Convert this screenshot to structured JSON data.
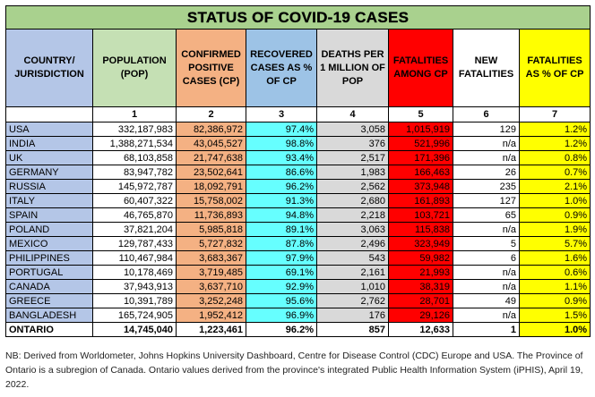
{
  "title": "STATUS OF COVID-19 CASES",
  "headers": [
    "COUNTRY/ JURISDICTION",
    "POPULATION (POP)",
    "CONFIRMED POSITIVE CASES (CP)",
    "RECOVERED CASES AS % OF CP",
    "DEATHS PER 1 MILLION OF POP",
    "FATALITIES AMONG CP",
    "NEW FATALITIES",
    "FATALITIES AS % OF CP"
  ],
  "column_numbers": [
    "",
    "1",
    "2",
    "3",
    "4",
    "5",
    "6",
    "7"
  ],
  "rows": [
    [
      "USA",
      "332,187,983",
      "82,386,972",
      "97.4%",
      "3,058",
      "1,015,919",
      "129",
      "1.2%"
    ],
    [
      "INDIA",
      "1,388,271,534",
      "43,045,527",
      "98.8%",
      "376",
      "521,996",
      "n/a",
      "1.2%"
    ],
    [
      "UK",
      "68,103,858",
      "21,747,638",
      "93.4%",
      "2,517",
      "171,396",
      "n/a",
      "0.8%"
    ],
    [
      "GERMANY",
      "83,947,782",
      "23,502,641",
      "86.6%",
      "1,983",
      "166,463",
      "26",
      "0.7%"
    ],
    [
      "RUSSIA",
      "145,972,787",
      "18,092,791",
      "96.2%",
      "2,562",
      "373,948",
      "235",
      "2.1%"
    ],
    [
      "ITALY",
      "60,407,322",
      "15,758,002",
      "91.3%",
      "2,680",
      "161,893",
      "127",
      "1.0%"
    ],
    [
      "SPAIN",
      "46,765,870",
      "11,736,893",
      "94.8%",
      "2,218",
      "103,721",
      "65",
      "0.9%"
    ],
    [
      "POLAND",
      "37,821,204",
      "5,985,818",
      "89.1%",
      "3,063",
      "115,838",
      "n/a",
      "1.9%"
    ],
    [
      "MEXICO",
      "129,787,433",
      "5,727,832",
      "87.8%",
      "2,496",
      "323,949",
      "5",
      "5.7%"
    ],
    [
      "PHILIPPINES",
      "110,467,984",
      "3,683,367",
      "97.9%",
      "543",
      "59,982",
      "6",
      "1.6%"
    ],
    [
      "PORTUGAL",
      "10,178,469",
      "3,719,485",
      "69.1%",
      "2,161",
      "21,993",
      "n/a",
      "0.6%"
    ],
    [
      "CANADA",
      "37,943,913",
      "3,637,710",
      "92.9%",
      "1,010",
      "38,319",
      "n/a",
      "1.1%"
    ],
    [
      "GREECE",
      "10,391,789",
      "3,252,248",
      "95.6%",
      "2,762",
      "28,701",
      "49",
      "0.9%"
    ],
    [
      "BANGLADESH",
      "165,724,905",
      "1,952,412",
      "96.9%",
      "176",
      "29,126",
      "n/a",
      "1.5%"
    ]
  ],
  "ontario": [
    "ONTARIO",
    "14,745,040",
    "1,223,461",
    "96.2%",
    "857",
    "12,633",
    "1",
    "1.0%"
  ],
  "note": "NB: Derived from Worldometer, Johns Hopkins University Dashboard, Centre for Disease Control (CDC) Europe and USA. The Province of Ontario is a subregion of Canada. Ontario values derived from the province's integrated Public Health Information System (iPHIS), April 19, 2022.",
  "colors": {
    "title_bg": "#a9d18e",
    "country_bg": "#b4c6e7",
    "cases_bg": "#f4b183",
    "recovered_bg": "#66ffff",
    "deaths_bg": "#d9d9d9",
    "fatalities_bg": "#ff0000",
    "pct_bg": "#ffff00"
  }
}
